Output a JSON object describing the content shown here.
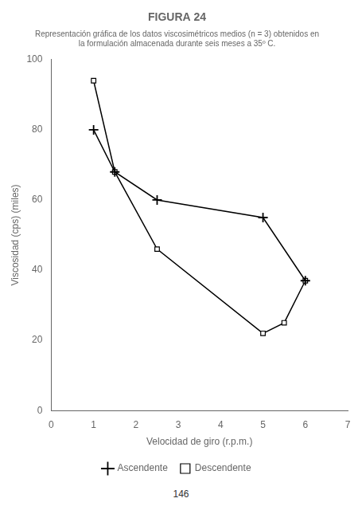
{
  "chart_data": {
    "type": "line",
    "title": "FIGURA 24",
    "subtitle": [
      "Representación gráfica de los datos viscosimétricos medios (n = 3) obtenidos en",
      "la formulación almacenada durante seis meses a 35º C."
    ],
    "xlabel": "Velocidad de giro (r.p.m.)",
    "ylabel": "Viscosidad (cps) (miles)",
    "annotations": [
      "146"
    ],
    "series": [
      {
        "name": "Ascendente",
        "x": [
          1,
          1.5,
          2.5,
          5,
          6
        ],
        "values": [
          80,
          68,
          60,
          55,
          37
        ],
        "color": "#000000",
        "marker": "plus",
        "line_style": "solid"
      },
      {
        "name": "Descendente",
        "x": [
          1,
          1.5,
          2.5,
          5,
          5.5,
          6
        ],
        "values": [
          94,
          68,
          46,
          22,
          25,
          37
        ],
        "color": "#000000",
        "marker": "square",
        "line_style": "solid"
      }
    ],
    "xlim": [
      0,
      7
    ],
    "ylim": [
      0,
      100
    ],
    "xticks": [
      0,
      1,
      2,
      3,
      4,
      5,
      6,
      7
    ],
    "yticks": [
      0,
      20,
      40,
      60,
      80,
      100
    ],
    "grid": false,
    "legend": "bottom"
  }
}
